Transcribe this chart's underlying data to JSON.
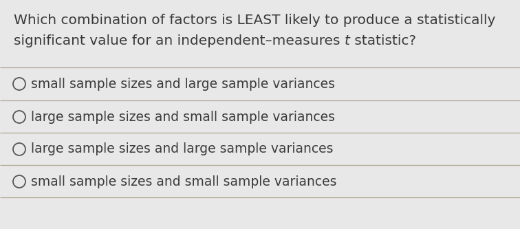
{
  "question_line1": "Which combination of factors is LEAST likely to produce a statistically",
  "question_line2_before_t": "significant value for an independent–measures ",
  "question_t": "t",
  "question_line2_after_t": " statistic?",
  "options": [
    "small sample sizes and large sample variances",
    "large sample sizes and small sample variances",
    "large sample sizes and large sample variances",
    "small sample sizes and small sample variances"
  ],
  "background_color": "#e8e8e8",
  "text_color": "#3a3a3a",
  "line_color": "#b0a898",
  "circle_edge_color": "#555555",
  "question_fontsize": 14.5,
  "option_fontsize": 13.5
}
